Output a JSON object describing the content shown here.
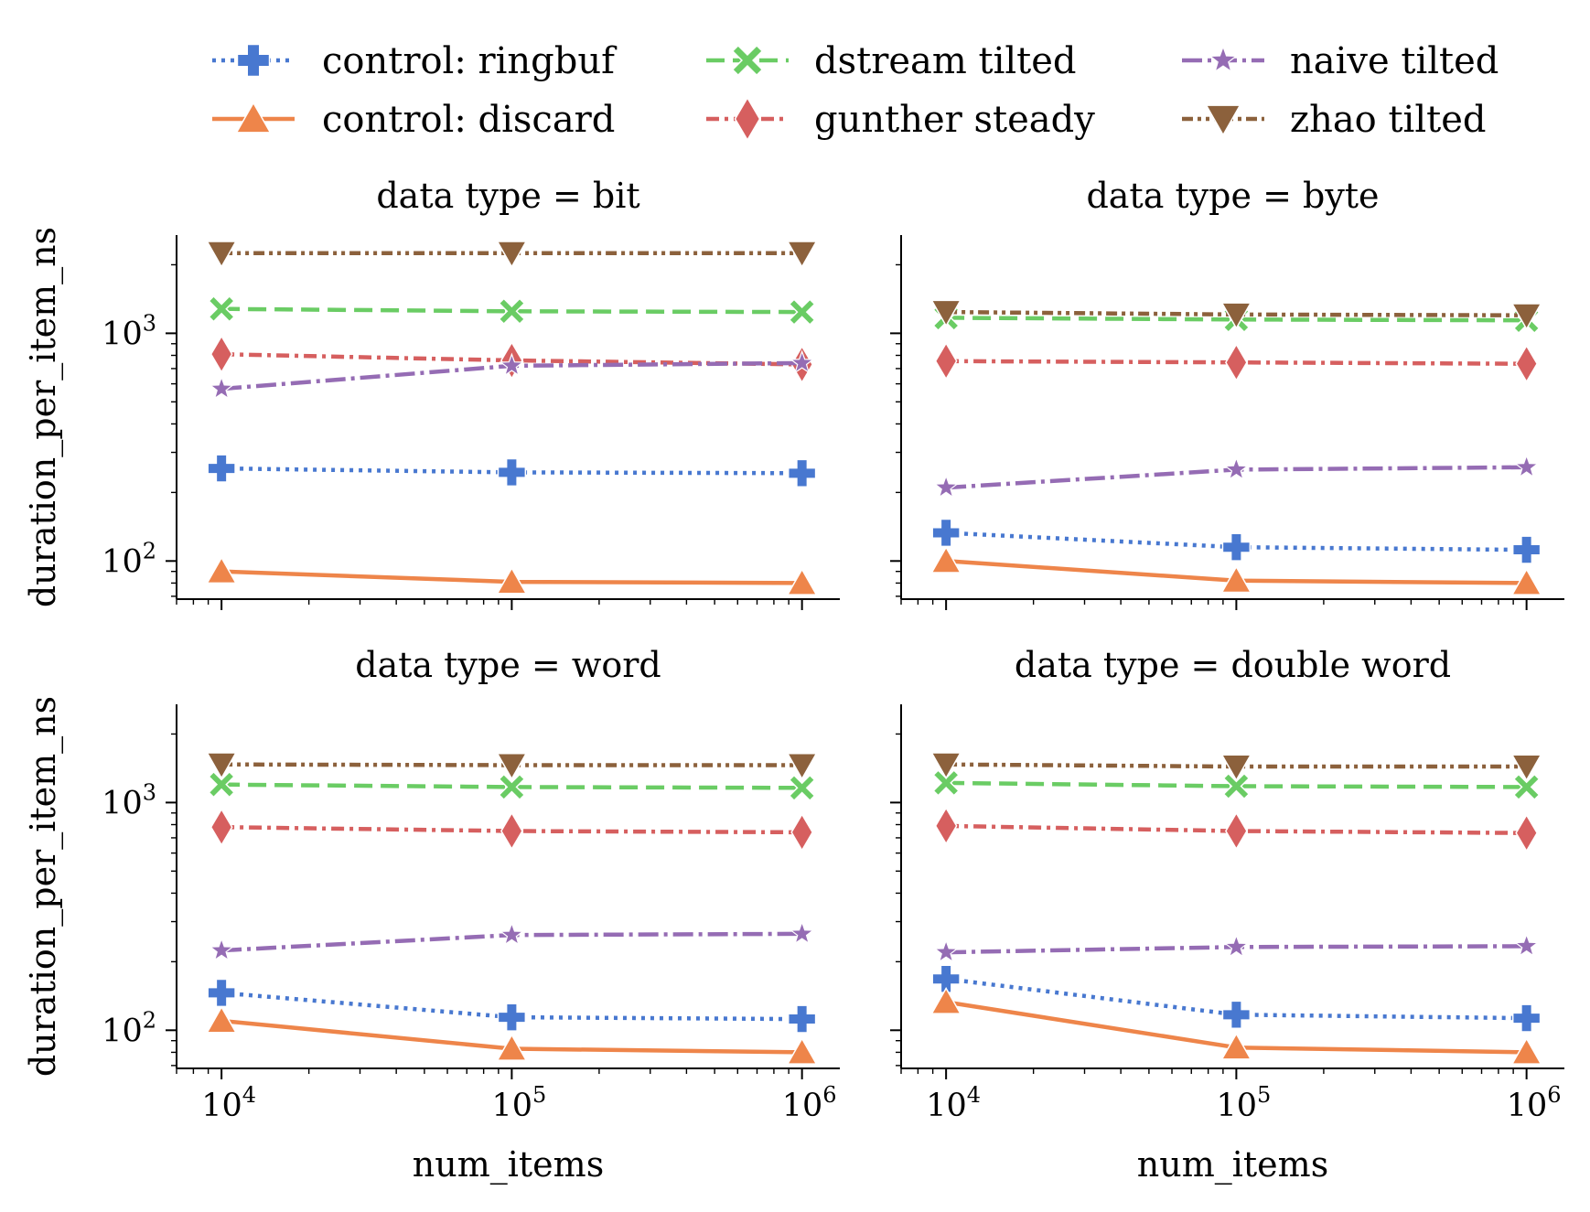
{
  "chart_data": {
    "type": "line",
    "facet_variable": "data type",
    "xlabel": "num_items",
    "ylabel": "duration_per_item_ns",
    "x_scale": "log",
    "y_scale": "log",
    "x_ticks": [
      "10^4",
      "10^5",
      "10^6"
    ],
    "y_ticks": [
      "10^2",
      "10^3"
    ],
    "xlim": [
      7000,
      1350000
    ],
    "ylim": [
      68,
      2700
    ],
    "x": [
      10000,
      100000,
      1000000
    ],
    "legend_position": "top",
    "series_styles": [
      {
        "name": "control: ringbuf",
        "color": "#4878d0",
        "marker": "plus",
        "dash": "4 6"
      },
      {
        "name": "control: discard",
        "color": "#ee854a",
        "marker": "triangle-up",
        "dash": ""
      },
      {
        "name": "dstream tilted",
        "color": "#6acc64",
        "marker": "x",
        "dash": "20 9"
      },
      {
        "name": "gunther steady",
        "color": "#d65f5f",
        "marker": "diamond",
        "dash": "14 6 4 6"
      },
      {
        "name": "naive tilted",
        "color": "#956cb4",
        "marker": "star",
        "dash": "22 6 4 6"
      },
      {
        "name": "zhao tilted",
        "color": "#8c613c",
        "marker": "triangle-down",
        "dash": "12 5 4 5 4 5"
      }
    ],
    "panels": [
      {
        "title": "data type = bit",
        "series": [
          {
            "name": "control: ringbuf",
            "values": [
              255,
              245,
              243
            ]
          },
          {
            "name": "control: discard",
            "values": [
              90,
              81,
              80
            ]
          },
          {
            "name": "dstream tilted",
            "values": [
              1280,
              1250,
              1240
            ]
          },
          {
            "name": "gunther steady",
            "values": [
              810,
              760,
              730
            ]
          },
          {
            "name": "naive tilted",
            "values": [
              570,
              720,
              740
            ]
          },
          {
            "name": "zhao tilted",
            "values": [
              2250,
              2250,
              2250
            ]
          }
        ]
      },
      {
        "title": "data type = byte",
        "series": [
          {
            "name": "control: ringbuf",
            "values": [
              133,
              115,
              112
            ]
          },
          {
            "name": "control: discard",
            "values": [
              100,
              82,
              80
            ]
          },
          {
            "name": "dstream tilted",
            "values": [
              1170,
              1150,
              1140
            ]
          },
          {
            "name": "gunther steady",
            "values": [
              755,
              745,
              735
            ]
          },
          {
            "name": "naive tilted",
            "values": [
              210,
              252,
              258
            ]
          },
          {
            "name": "zhao tilted",
            "values": [
              1240,
              1210,
              1200
            ]
          }
        ]
      },
      {
        "title": "data type = word",
        "series": [
          {
            "name": "control: ringbuf",
            "values": [
              146,
              114,
              112
            ]
          },
          {
            "name": "control: discard",
            "values": [
              110,
              83,
              80
            ]
          },
          {
            "name": "dstream tilted",
            "values": [
              1200,
              1170,
              1160
            ]
          },
          {
            "name": "gunther steady",
            "values": [
              780,
              750,
              740
            ]
          },
          {
            "name": "naive tilted",
            "values": [
              224,
              262,
              265
            ]
          },
          {
            "name": "zhao tilted",
            "values": [
              1470,
              1460,
              1460
            ]
          }
        ]
      },
      {
        "title": "data type = double word",
        "series": [
          {
            "name": "control: ringbuf",
            "values": [
              168,
              117,
              113
            ]
          },
          {
            "name": "control: discard",
            "values": [
              133,
              84,
              80
            ]
          },
          {
            "name": "dstream tilted",
            "values": [
              1220,
              1180,
              1170
            ]
          },
          {
            "name": "gunther steady",
            "values": [
              790,
              750,
              735
            ]
          },
          {
            "name": "naive tilted",
            "values": [
              220,
              232,
              234
            ]
          },
          {
            "name": "zhao tilted",
            "values": [
              1470,
              1440,
              1440
            ]
          }
        ]
      }
    ]
  }
}
